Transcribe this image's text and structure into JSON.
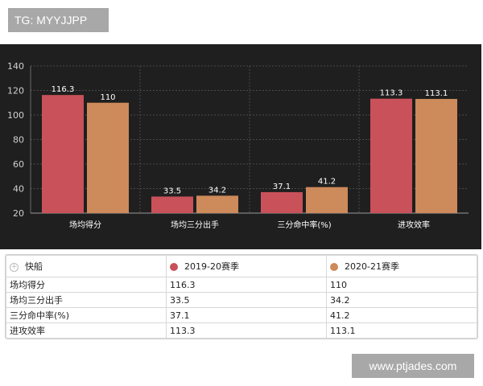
{
  "watermarks": {
    "top": "TG: MYYJJPP",
    "bottom": "www.ptjades.com"
  },
  "chart_data": {
    "type": "bar",
    "categories": [
      "场均得分",
      "场均三分出手",
      "三分命中率(%)",
      "进攻效率"
    ],
    "series": [
      {
        "name": "2019-20赛季",
        "values": [
          116.3,
          33.5,
          37.1,
          113.3
        ],
        "color": "#c9515a"
      },
      {
        "name": "2020-21赛季",
        "values": [
          110,
          34.2,
          41.2,
          113.1
        ],
        "color": "#cd8a5a"
      }
    ],
    "value_labels": [
      [
        "116.3",
        "33.5",
        "37.1",
        "113.3"
      ],
      [
        "110",
        "34.2",
        "41.2",
        "113.1"
      ]
    ],
    "ylim": [
      20,
      140
    ],
    "yticks": [
      20,
      40,
      60,
      80,
      100,
      120,
      140
    ],
    "grid": true,
    "background": "#1f1f1f"
  },
  "table": {
    "team": "快船",
    "headers": [
      "2019-20赛季",
      "2020-21赛季"
    ],
    "rows": [
      {
        "label": "场均得分",
        "s1": "116.3",
        "s2": "110"
      },
      {
        "label": "场均三分出手",
        "s1": "33.5",
        "s2": "34.2"
      },
      {
        "label": "三分命中率(%)",
        "s1": "37.1",
        "s2": "41.2"
      },
      {
        "label": "进攻效率",
        "s1": "113.3",
        "s2": "113.1"
      }
    ]
  }
}
